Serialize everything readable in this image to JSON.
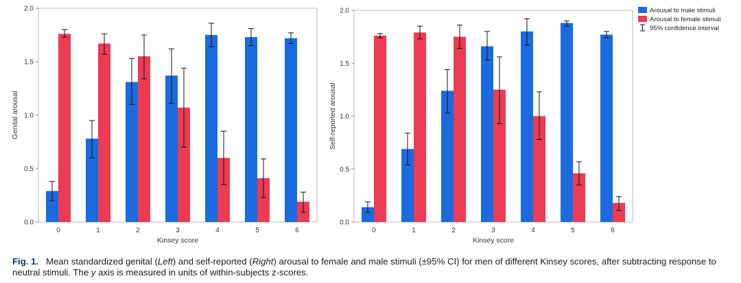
{
  "chart_data": [
    {
      "type": "bar",
      "panel": "left",
      "ylabel": "Genital arousal",
      "xlabel": "Kinsey score",
      "categories": [
        "0",
        "1",
        "2",
        "3",
        "4",
        "5",
        "6"
      ],
      "ylim": [
        0,
        2.0
      ],
      "yticks": [
        "0.0",
        "0.5",
        "1.0",
        "1.5",
        "2.0"
      ],
      "series": [
        {
          "name": "Arousal to male stimuli",
          "color": "#1a6be0",
          "values": [
            0.29,
            0.78,
            1.31,
            1.37,
            1.75,
            1.73,
            1.72
          ],
          "ci_low": [
            0.2,
            0.6,
            1.1,
            1.11,
            1.64,
            1.65,
            1.67
          ],
          "ci_high": [
            0.38,
            0.95,
            1.53,
            1.62,
            1.86,
            1.81,
            1.77
          ]
        },
        {
          "name": "Arousal to female stimuli",
          "color": "#ec3b52",
          "values": [
            1.76,
            1.67,
            1.55,
            1.07,
            0.6,
            0.41,
            0.19
          ],
          "ci_low": [
            1.73,
            1.57,
            1.34,
            0.7,
            0.35,
            0.23,
            0.09
          ],
          "ci_high": [
            1.8,
            1.76,
            1.75,
            1.44,
            0.85,
            0.59,
            0.28
          ]
        }
      ]
    },
    {
      "type": "bar",
      "panel": "right",
      "ylabel": "Self-reported arousal",
      "xlabel": "Kinsey score",
      "categories": [
        "0",
        "1",
        "2",
        "3",
        "4",
        "5",
        "6"
      ],
      "ylim": [
        0,
        2.0
      ],
      "yticks": [
        "0.0",
        "0.5",
        "1.0",
        "1.5",
        "2.0"
      ],
      "series": [
        {
          "name": "Arousal to male stimuli",
          "color": "#1a6be0",
          "values": [
            0.14,
            0.69,
            1.24,
            1.66,
            1.8,
            1.88,
            1.77
          ],
          "ci_low": [
            0.09,
            0.54,
            1.03,
            1.53,
            1.67,
            1.85,
            1.74
          ],
          "ci_high": [
            0.19,
            0.84,
            1.44,
            1.8,
            1.92,
            1.9,
            1.8
          ]
        },
        {
          "name": "Arousal to female stimuli",
          "color": "#ec3b52",
          "values": [
            1.76,
            1.79,
            1.75,
            1.25,
            1.0,
            0.46,
            0.18
          ],
          "ci_low": [
            1.74,
            1.73,
            1.64,
            0.93,
            0.78,
            0.35,
            0.11
          ],
          "ci_high": [
            1.78,
            1.85,
            1.86,
            1.56,
            1.23,
            0.57,
            0.24
          ]
        }
      ]
    }
  ],
  "legend": {
    "items": [
      "Arousal to male stimuli",
      "Arousal to female stimuli",
      "95% confidence interval"
    ]
  },
  "caption": {
    "label": "Fig. 1.",
    "part1": "Mean standardized genital (",
    "left": "Left",
    "part2": ") and self-reported (",
    "right": "Right",
    "part3": ") arousal to female and male stimuli (±95% CI) for men of different Kinsey scores, after subtracting response to neutral stimuli. The ",
    "y": "y",
    "part4": " axis is measured in units of within-subjects z-scores."
  }
}
